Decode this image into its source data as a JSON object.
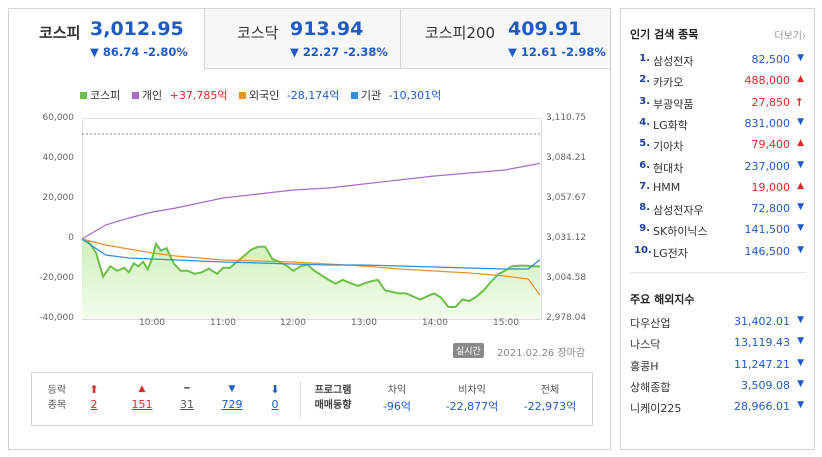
{
  "tabs": [
    {
      "name": "코스피",
      "value": "3,012.95",
      "change": "▼ 86.74 -2.80%",
      "active": true
    },
    {
      "name": "코스닥",
      "value": "913.94",
      "change": "▼ 22.27 -2.38%"
    },
    {
      "name": "코스피200",
      "value": "409.91",
      "change": "▼ 12.61 -2.98%"
    }
  ],
  "legend": [
    {
      "label": "코스피",
      "value": "",
      "color": "#6cc04a"
    },
    {
      "label": "개인",
      "value": "+37,785억",
      "color": "#a86cc8"
    },
    {
      "label": "외국인",
      "value": "-28,174억",
      "color": "#e8902c"
    },
    {
      "label": "기관",
      "value": "-10,301억",
      "color": "#2c8fe0"
    }
  ],
  "chart_data": {
    "type": "line",
    "x_ticks": [
      "10:00",
      "11:00",
      "12:00",
      "13:00",
      "14:00",
      "15:00"
    ],
    "y_left_ticks": [
      "60,000",
      "40,000",
      "20,000",
      "0",
      "-20,000",
      "-40,000"
    ],
    "y_right_ticks": [
      "3,110.75",
      "3,084.21",
      "3,057.67",
      "3,031.12",
      "3,004.58",
      "2,978.04"
    ],
    "y_left_range": [
      -40000,
      60000
    ],
    "y_right_range": [
      2978.04,
      3110.75
    ],
    "x_range": [
      "09:00",
      "15:30"
    ],
    "series": [
      {
        "name": "코스피",
        "axis": "right",
        "color": "#6cc04a",
        "t": [
          "09:00",
          "09:06",
          "09:12",
          "09:18",
          "09:24",
          "09:30",
          "09:36",
          "09:40",
          "09:44",
          "09:48",
          "09:52",
          "09:56",
          "10:00",
          "10:03",
          "10:07",
          "10:12",
          "10:18",
          "10:24",
          "10:30",
          "10:36",
          "10:42",
          "10:48",
          "10:55",
          "11:00",
          "11:06",
          "11:12",
          "11:18",
          "11:24",
          "11:30",
          "11:36",
          "11:42",
          "11:48",
          "11:55",
          "12:00",
          "12:06",
          "12:12",
          "12:18",
          "12:24",
          "12:30",
          "12:36",
          "12:42",
          "12:48",
          "12:55",
          "13:00",
          "13:06",
          "13:12",
          "13:18",
          "13:24",
          "13:30",
          "13:36",
          "13:42",
          "13:48",
          "13:55",
          "14:00",
          "14:06",
          "14:12",
          "14:18",
          "14:24",
          "14:30",
          "14:36",
          "14:42",
          "14:48",
          "14:55",
          "15:00",
          "15:06",
          "15:12",
          "15:18",
          "15:24",
          "15:30"
        ],
        "v": [
          3031.1,
          3029.0,
          3022.0,
          3006.0,
          3013.0,
          3010.0,
          3012.0,
          3009.0,
          3015.0,
          3013.0,
          3016.0,
          3011.0,
          3019.0,
          3028.0,
          3023.5,
          3025.0,
          3015.0,
          3010.0,
          3010.0,
          3008.0,
          3009.0,
          3011.5,
          3008.0,
          3012.0,
          3012.0,
          3016.0,
          3020.0,
          3024.0,
          3026.0,
          3026.0,
          3018.0,
          3016.0,
          3013.0,
          3010.0,
          3013.0,
          3014.0,
          3010.0,
          3007.0,
          3004.0,
          3001.5,
          3004.0,
          3002.0,
          3000.0,
          3001.5,
          3003.0,
          3004.0,
          2997.0,
          2996.0,
          2995.0,
          2995.0,
          2993.0,
          2991.0,
          2993.5,
          2995.0,
          2992.0,
          2986.0,
          2986.0,
          2991.0,
          2990.0,
          2993.0,
          2997.0,
          3002.5,
          3008.0,
          3010.0,
          3013.0,
          3013.5,
          3013.5,
          3013.0,
          3012.95
        ]
      },
      {
        "name": "개인",
        "axis": "left",
        "color": "#a86cc8",
        "t": [
          "09:00",
          "09:20",
          "09:40",
          "10:00",
          "10:20",
          "10:40",
          "11:00",
          "11:30",
          "12:00",
          "12:30",
          "13:00",
          "13:30",
          "14:00",
          "14:30",
          "15:00",
          "15:30"
        ],
        "v": [
          0,
          7000,
          10500,
          13500,
          15500,
          18000,
          20500,
          22500,
          24500,
          25500,
          27500,
          29500,
          31500,
          33000,
          34500,
          37785
        ]
      },
      {
        "name": "외국인",
        "axis": "left",
        "color": "#e8902c",
        "t": [
          "09:00",
          "09:20",
          "09:40",
          "10:00",
          "10:20",
          "10:40",
          "11:00",
          "11:30",
          "12:00",
          "12:30",
          "13:00",
          "13:30",
          "14:00",
          "14:30",
          "15:00",
          "15:20",
          "15:30"
        ],
        "v": [
          0,
          -3000,
          -5000,
          -7000,
          -8500,
          -9500,
          -10500,
          -11000,
          -11500,
          -12500,
          -13500,
          -15000,
          -16000,
          -17000,
          -18500,
          -20000,
          -28174
        ]
      },
      {
        "name": "기관",
        "axis": "left",
        "color": "#2c8fe0",
        "t": [
          "09:00",
          "09:20",
          "09:40",
          "10:00",
          "10:20",
          "10:40",
          "11:00",
          "11:30",
          "12:00",
          "12:30",
          "13:00",
          "13:30",
          "14:00",
          "14:30",
          "15:00",
          "15:20",
          "15:30"
        ],
        "v": [
          0,
          -8000,
          -9500,
          -10000,
          -10500,
          -11000,
          -11500,
          -12000,
          -12500,
          -13000,
          -13000,
          -13500,
          -14000,
          -14500,
          -15000,
          -15000,
          -10301
        ]
      }
    ]
  },
  "realtime_label": "실시간",
  "date_label": "2021.02.26",
  "status_label": "장마감",
  "breadth": {
    "label_line1": "등락",
    "label_line2": "종목",
    "items": [
      {
        "icon": "⬆",
        "count": "2",
        "color": "#d92b2b",
        "icon_name": "upper-limit-icon"
      },
      {
        "icon": "▲",
        "count": "151",
        "color": "#d92b2b",
        "icon_name": "rise-icon"
      },
      {
        "icon": "━",
        "count": "31",
        "color": "#555555",
        "icon_name": "unchanged-icon"
      },
      {
        "icon": "▼",
        "count": "729",
        "color": "#1f5bc6",
        "icon_name": "fall-icon"
      },
      {
        "icon": "⬇",
        "count": "0",
        "color": "#1f5bc6",
        "icon_name": "lower-limit-icon"
      }
    ]
  },
  "program": {
    "label_line1": "프로그램",
    "label_line2": "매매동향",
    "cols": [
      {
        "head": "차익",
        "value": "-96억"
      },
      {
        "head": "비차익",
        "value": "-22,877억"
      },
      {
        "head": "전체",
        "value": "-22,973억"
      }
    ]
  },
  "popular": {
    "title": "인기 검색 종목",
    "more": "더보기",
    "items": [
      {
        "rank": "1.",
        "name": "삼성전자",
        "price": "82,500",
        "dir": "▼"
      },
      {
        "rank": "2.",
        "name": "카카오",
        "price": "488,000",
        "dir": "▲"
      },
      {
        "rank": "3.",
        "name": "부광약품",
        "price": "27,850",
        "dir": "↑"
      },
      {
        "rank": "4.",
        "name": "LG화학",
        "price": "831,000",
        "dir": "▼"
      },
      {
        "rank": "5.",
        "name": "기아차",
        "price": "79,400",
        "dir": "▲"
      },
      {
        "rank": "6.",
        "name": "현대차",
        "price": "237,000",
        "dir": "▼"
      },
      {
        "rank": "7.",
        "name": "HMM",
        "price": "19,000",
        "dir": "▲"
      },
      {
        "rank": "8.",
        "name": "삼성전자우",
        "price": "72,800",
        "dir": "▼"
      },
      {
        "rank": "9.",
        "name": "SK하이닉스",
        "price": "141,500",
        "dir": "▼"
      },
      {
        "rank": "10.",
        "name": "LG전자",
        "price": "146,500",
        "dir": "▼"
      }
    ]
  },
  "overseas": {
    "title": "주요 해외지수",
    "items": [
      {
        "name": "다우산업",
        "price": "31,402.01",
        "dir": "▼"
      },
      {
        "name": "나스닥",
        "price": "13,119.43",
        "dir": "▼"
      },
      {
        "name": "홍콩H",
        "price": "11,247.21",
        "dir": "▼"
      },
      {
        "name": "상해종합",
        "price": "3,509.08",
        "dir": "▼"
      },
      {
        "name": "니케이225",
        "price": "28,966.01",
        "dir": "▼"
      }
    ]
  },
  "colors": {
    "up": "#d92b2b",
    "down": "#1f5bc6"
  }
}
